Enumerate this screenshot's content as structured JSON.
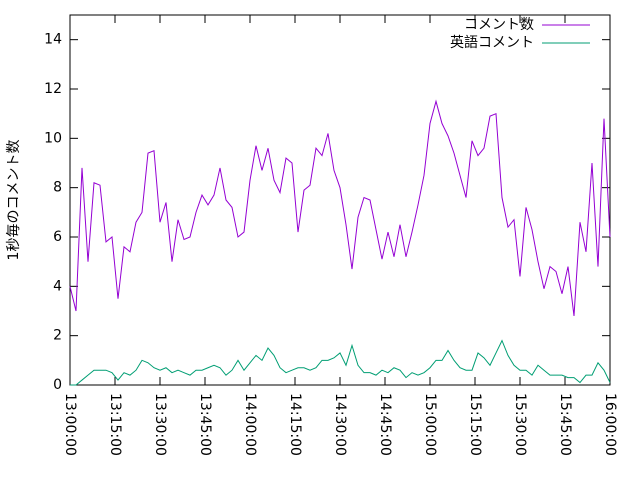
{
  "chart_data": {
    "type": "line",
    "ylabel": "1秒毎のコメント数",
    "x": [
      "13:00:00",
      "13:02:00",
      "13:04:00",
      "13:06:00",
      "13:08:00",
      "13:10:00",
      "13:12:00",
      "13:14:00",
      "13:16:00",
      "13:18:00",
      "13:20:00",
      "13:22:00",
      "13:24:00",
      "13:26:00",
      "13:28:00",
      "13:30:00",
      "13:32:00",
      "13:34:00",
      "13:36:00",
      "13:38:00",
      "13:40:00",
      "13:42:00",
      "13:44:00",
      "13:46:00",
      "13:48:00",
      "13:50:00",
      "13:52:00",
      "13:54:00",
      "13:56:00",
      "13:58:00",
      "14:00:00",
      "14:02:00",
      "14:04:00",
      "14:06:00",
      "14:08:00",
      "14:10:00",
      "14:12:00",
      "14:14:00",
      "14:16:00",
      "14:18:00",
      "14:20:00",
      "14:22:00",
      "14:24:00",
      "14:26:00",
      "14:28:00",
      "14:30:00",
      "14:32:00",
      "14:34:00",
      "14:36:00",
      "14:38:00",
      "14:40:00",
      "14:42:00",
      "14:44:00",
      "14:46:00",
      "14:48:00",
      "14:50:00",
      "14:52:00",
      "14:54:00",
      "14:56:00",
      "14:58:00",
      "15:00:00",
      "15:02:00",
      "15:04:00",
      "15:06:00",
      "15:08:00",
      "15:10:00",
      "15:12:00",
      "15:14:00",
      "15:16:00",
      "15:18:00",
      "15:20:00",
      "15:22:00",
      "15:24:00",
      "15:26:00",
      "15:28:00",
      "15:30:00",
      "15:32:00",
      "15:34:00",
      "15:36:00",
      "15:38:00",
      "15:40:00",
      "15:42:00",
      "15:44:00",
      "15:46:00",
      "15:48:00",
      "15:50:00",
      "15:52:00",
      "15:54:00",
      "15:56:00",
      "15:58:00",
      "16:00:00"
    ],
    "series": [
      {
        "name": "コメント数",
        "color": "#9400d3",
        "values": [
          4.0,
          3.0,
          8.8,
          5.0,
          8.2,
          8.1,
          5.8,
          6.0,
          3.5,
          5.6,
          5.4,
          6.6,
          7.0,
          9.4,
          9.5,
          6.6,
          7.4,
          5.0,
          6.7,
          5.9,
          6.0,
          7.0,
          7.7,
          7.3,
          7.7,
          8.8,
          7.5,
          7.2,
          6.0,
          6.2,
          8.3,
          9.7,
          8.7,
          9.6,
          8.3,
          7.8,
          9.2,
          9.0,
          6.2,
          7.9,
          8.1,
          9.6,
          9.3,
          10.2,
          8.7,
          8.0,
          6.5,
          4.7,
          6.8,
          7.6,
          7.5,
          6.3,
          5.1,
          6.2,
          5.2,
          6.5,
          5.2,
          6.2,
          7.3,
          8.5,
          10.6,
          11.5,
          10.6,
          10.1,
          9.4,
          8.5,
          7.6,
          9.9,
          9.3,
          9.6,
          10.9,
          11.0,
          7.6,
          6.4,
          6.7,
          4.4,
          7.2,
          6.3,
          5.0,
          3.9,
          4.8,
          4.6,
          3.7,
          4.8,
          2.8,
          6.6,
          5.4,
          9.0,
          4.8,
          10.8,
          6.0
        ]
      },
      {
        "name": "英語コメント",
        "color": "#009e73",
        "values": [
          0.0,
          0.0,
          0.2,
          0.4,
          0.6,
          0.6,
          0.6,
          0.5,
          0.2,
          0.5,
          0.4,
          0.6,
          1.0,
          0.9,
          0.7,
          0.6,
          0.7,
          0.5,
          0.6,
          0.5,
          0.4,
          0.6,
          0.6,
          0.7,
          0.8,
          0.7,
          0.4,
          0.6,
          1.0,
          0.6,
          0.9,
          1.2,
          1.0,
          1.5,
          1.2,
          0.7,
          0.5,
          0.6,
          0.7,
          0.7,
          0.6,
          0.7,
          1.0,
          1.0,
          1.1,
          1.3,
          0.8,
          1.6,
          0.8,
          0.5,
          0.5,
          0.4,
          0.6,
          0.5,
          0.7,
          0.6,
          0.3,
          0.5,
          0.4,
          0.5,
          0.7,
          1.0,
          1.0,
          1.4,
          1.0,
          0.7,
          0.6,
          0.6,
          1.3,
          1.1,
          0.8,
          1.3,
          1.8,
          1.2,
          0.8,
          0.6,
          0.6,
          0.4,
          0.8,
          0.6,
          0.4,
          0.4,
          0.4,
          0.3,
          0.3,
          0.1,
          0.4,
          0.4,
          0.9,
          0.6,
          0.1
        ]
      }
    ],
    "xlim": [
      "13:00:00",
      "16:00:00"
    ],
    "xticks": [
      "13:00:00",
      "13:15:00",
      "13:30:00",
      "13:45:00",
      "14:00:00",
      "14:15:00",
      "14:30:00",
      "14:45:00",
      "15:00:00",
      "15:15:00",
      "15:30:00",
      "15:45:00",
      "16:00:00"
    ],
    "ylim": [
      0,
      15
    ],
    "yticks": [
      0,
      2,
      4,
      6,
      8,
      10,
      12,
      14
    ],
    "legend": "top-right"
  }
}
